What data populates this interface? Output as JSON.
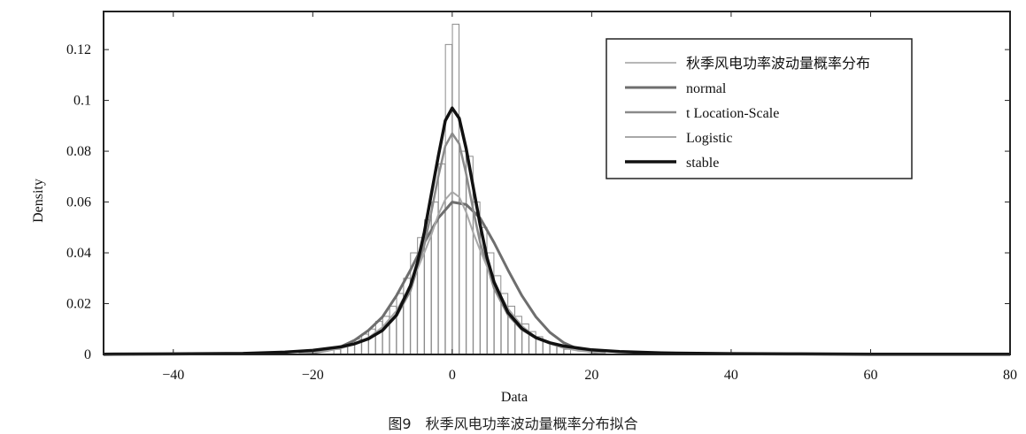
{
  "caption": "图9　秋季风电功率波动量概率分布拟合",
  "chart_data": {
    "type": "bar",
    "xlabel": "Data",
    "ylabel": "Density",
    "xlim": [
      -50,
      80
    ],
    "ylim": [
      0,
      0.135
    ],
    "xticks": [
      -40,
      -20,
      0,
      20,
      40,
      60,
      80
    ],
    "xtick_labels": [
      "−40",
      "−20",
      "0",
      "20",
      "40",
      "60",
      "80"
    ],
    "yticks": [
      0,
      0.02,
      0.04,
      0.06,
      0.08,
      0.1,
      0.12
    ],
    "ytick_labels": [
      "0",
      "0.02",
      "0.04",
      "0.06",
      "0.08",
      "0.1",
      "0.12"
    ],
    "grid": false,
    "legend_position": "top-right",
    "histogram": {
      "name": "秋季风电功率波动量概率分布",
      "bin_width": 0.95,
      "bin_centers": [
        -16.5,
        -15.5,
        -14.5,
        -13.5,
        -12.5,
        -11.5,
        -10.5,
        -9.5,
        -8.5,
        -7.5,
        -6.5,
        -5.5,
        -4.5,
        -3.5,
        -2.5,
        -1.5,
        -0.5,
        0.5,
        1.5,
        2.5,
        3.5,
        4.5,
        5.5,
        6.5,
        7.5,
        8.5,
        9.5,
        10.5,
        11.5,
        12.5,
        13.5,
        14.5,
        15.5,
        16.5
      ],
      "densities": [
        0.002,
        0.003,
        0.004,
        0.006,
        0.008,
        0.01,
        0.013,
        0.015,
        0.019,
        0.024,
        0.03,
        0.04,
        0.046,
        0.053,
        0.06,
        0.075,
        0.122,
        0.13,
        0.08,
        0.078,
        0.06,
        0.05,
        0.04,
        0.031,
        0.024,
        0.019,
        0.015,
        0.012,
        0.009,
        0.007,
        0.005,
        0.004,
        0.003,
        0.002
      ]
    },
    "series": [
      {
        "name": "normal",
        "color": "#6e6e6e",
        "x": [
          -22,
          -20,
          -18,
          -16,
          -14,
          -12,
          -10,
          -8,
          -6,
          -4,
          -2,
          0,
          2,
          4,
          6,
          8,
          10,
          12,
          14,
          16,
          18,
          20,
          22
        ],
        "y": [
          0.0003,
          0.0007,
          0.0015,
          0.003,
          0.0056,
          0.0095,
          0.0148,
          0.0231,
          0.0332,
          0.044,
          0.0537,
          0.06,
          0.059,
          0.0537,
          0.044,
          0.0332,
          0.0231,
          0.0148,
          0.0087,
          0.0046,
          0.0022,
          0.001,
          0.0004
        ]
      },
      {
        "name": "t Location-Scale",
        "color": "#8a8a8a",
        "x": [
          -24,
          -20,
          -16,
          -14,
          -12,
          -10,
          -8,
          -6,
          -4,
          -3,
          -2,
          -1,
          0,
          1,
          2,
          3,
          4,
          6,
          8,
          10,
          12,
          14,
          16,
          20,
          24
        ],
        "y": [
          0.0009,
          0.0016,
          0.003,
          0.0042,
          0.0062,
          0.0094,
          0.015,
          0.025,
          0.043,
          0.056,
          0.07,
          0.082,
          0.087,
          0.083,
          0.071,
          0.057,
          0.044,
          0.026,
          0.0155,
          0.0097,
          0.0064,
          0.0044,
          0.0031,
          0.0017,
          0.001
        ]
      },
      {
        "name": "Logistic",
        "color": "#a8a8a8",
        "x": [
          -22,
          -18,
          -16,
          -14,
          -12,
          -10,
          -8,
          -6,
          -4,
          -3,
          -2,
          -1,
          0,
          1,
          2,
          3,
          4,
          6,
          8,
          10,
          12,
          14,
          16,
          18,
          22
        ],
        "y": [
          0.0005,
          0.0014,
          0.0024,
          0.004,
          0.0066,
          0.0108,
          0.0172,
          0.027,
          0.04,
          0.047,
          0.055,
          0.061,
          0.064,
          0.062,
          0.056,
          0.048,
          0.041,
          0.028,
          0.018,
          0.0112,
          0.0068,
          0.0042,
          0.0025,
          0.0015,
          0.0005
        ]
      },
      {
        "name": "stable",
        "color": "#111111",
        "x": [
          -50,
          -40,
          -30,
          -24,
          -20,
          -16,
          -14,
          -12,
          -10,
          -8,
          -6,
          -5,
          -4,
          -3,
          -2,
          -1,
          0,
          1,
          2,
          3,
          4,
          5,
          6,
          8,
          10,
          12,
          14,
          16,
          20,
          24,
          30,
          40,
          50,
          60,
          70,
          80
        ],
        "y": [
          0.0001,
          0.0002,
          0.0004,
          0.0009,
          0.0016,
          0.003,
          0.0042,
          0.0062,
          0.0095,
          0.0155,
          0.027,
          0.036,
          0.048,
          0.063,
          0.078,
          0.092,
          0.097,
          0.093,
          0.081,
          0.066,
          0.051,
          0.038,
          0.0285,
          0.0165,
          0.0102,
          0.0066,
          0.0046,
          0.0033,
          0.0018,
          0.0011,
          0.0006,
          0.0003,
          0.0002,
          0.0001,
          0.0001,
          0.0001
        ]
      }
    ]
  }
}
